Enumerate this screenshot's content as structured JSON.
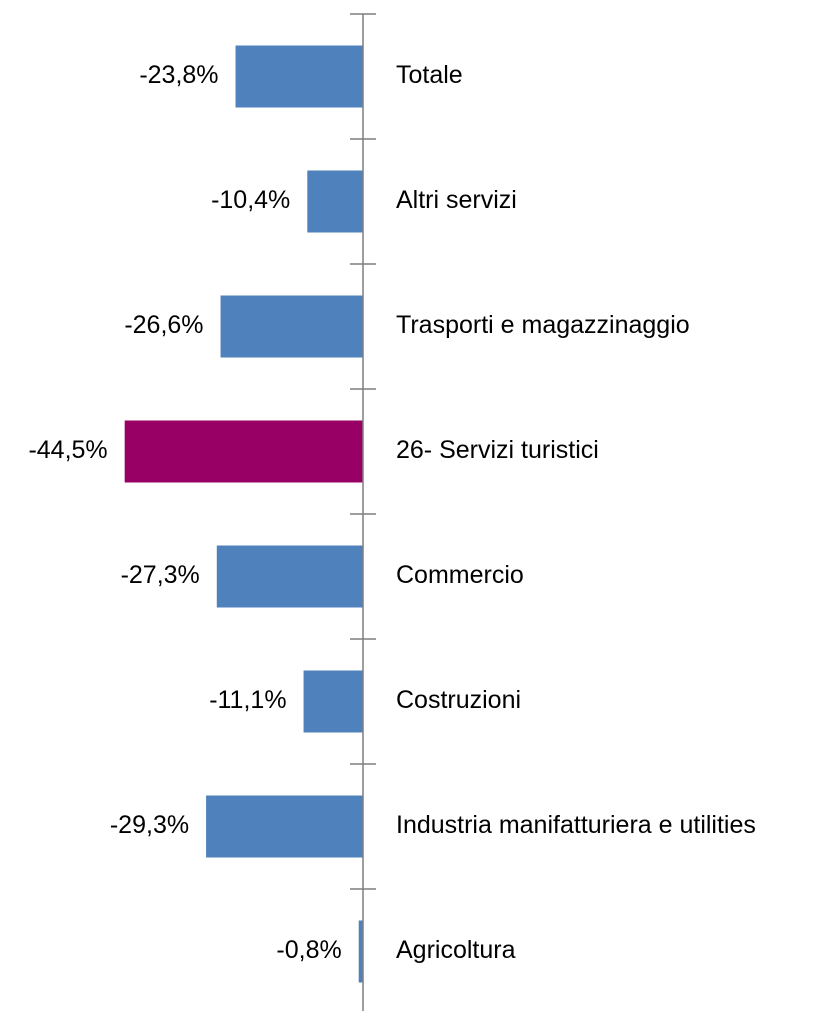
{
  "chart_data": {
    "type": "hbar",
    "categories": [
      "Totale",
      "Altri servizi",
      "Trasporti e magazzinaggio",
      "26- Servizi turistici",
      "Commercio",
      "Costruzioni",
      "Industria manifatturiera e utilities",
      "Agricoltura"
    ],
    "values": [
      -23.8,
      -10.4,
      -26.6,
      -44.5,
      -27.3,
      -11.1,
      -29.3,
      -0.8
    ],
    "value_labels": [
      "-23,8%",
      "-10,4%",
      "-26,6%",
      "-44,5%",
      "-27,3%",
      "-11,1%",
      "-29,3%",
      "-0,8%"
    ],
    "colors": [
      "#4f81bd",
      "#4f81bd",
      "#4f81bd",
      "#990066",
      "#4f81bd",
      "#4f81bd",
      "#4f81bd",
      "#4f81bd"
    ],
    "xlim": [
      -45,
      0
    ]
  }
}
